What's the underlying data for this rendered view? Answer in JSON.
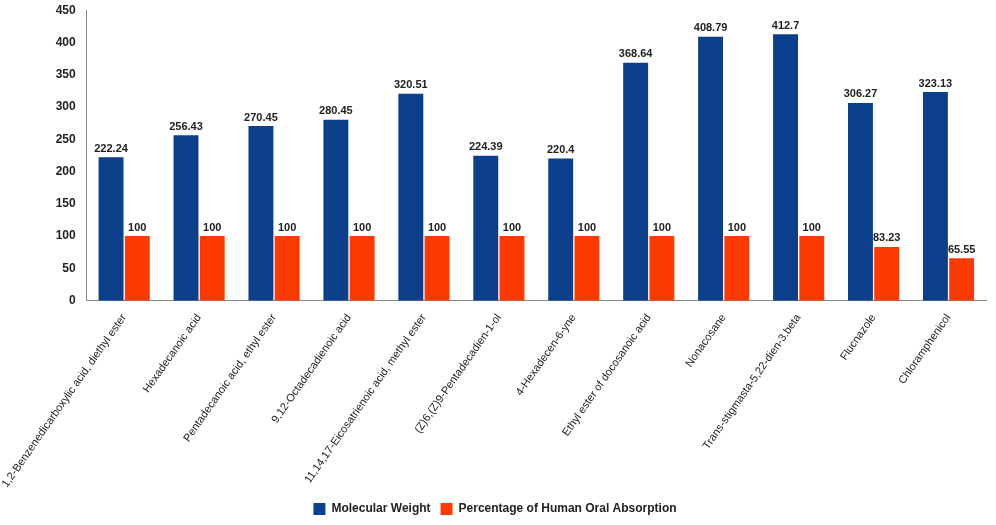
{
  "chart_data": {
    "type": "bar",
    "categories": [
      "1,2-Benzenedicarboxylic acid, diethyl ester",
      "Hexadecanoic acid",
      "Pentadecanoic acid, ethyl ester",
      "9,12-Octadecadienoic acid",
      "11,14,17-Eicosatrienoic acid, methyl ester",
      "(Z)6,(Z)9-Pentadecadien-1-ol",
      "4-Hexadecen-6-yne",
      "Ethyl ester of docosanoic acid",
      "Nonacosane",
      "Trans-stigmasta-5,22-dien-3.beta",
      "Flucnazole",
      "Chloramphenicol"
    ],
    "series": [
      {
        "name": "Molecular Weight",
        "color": "#0b3f8c",
        "values": [
          222.24,
          256.43,
          270.45,
          280.45,
          320.51,
          224.39,
          220.4,
          368.64,
          408.79,
          412.7,
          306.27,
          323.13
        ]
      },
      {
        "name": "Percentage of Human Oral Absorption",
        "color": "#ff3a00",
        "values": [
          100,
          100,
          100,
          100,
          100,
          100,
          100,
          100,
          100,
          100,
          83.23,
          65.55
        ]
      }
    ],
    "ylim": [
      0,
      450
    ],
    "yticks": [
      0,
      50,
      100,
      150,
      200,
      250,
      300,
      350,
      400,
      450
    ],
    "grid": false,
    "legend": "bottom",
    "data_labels": true
  }
}
